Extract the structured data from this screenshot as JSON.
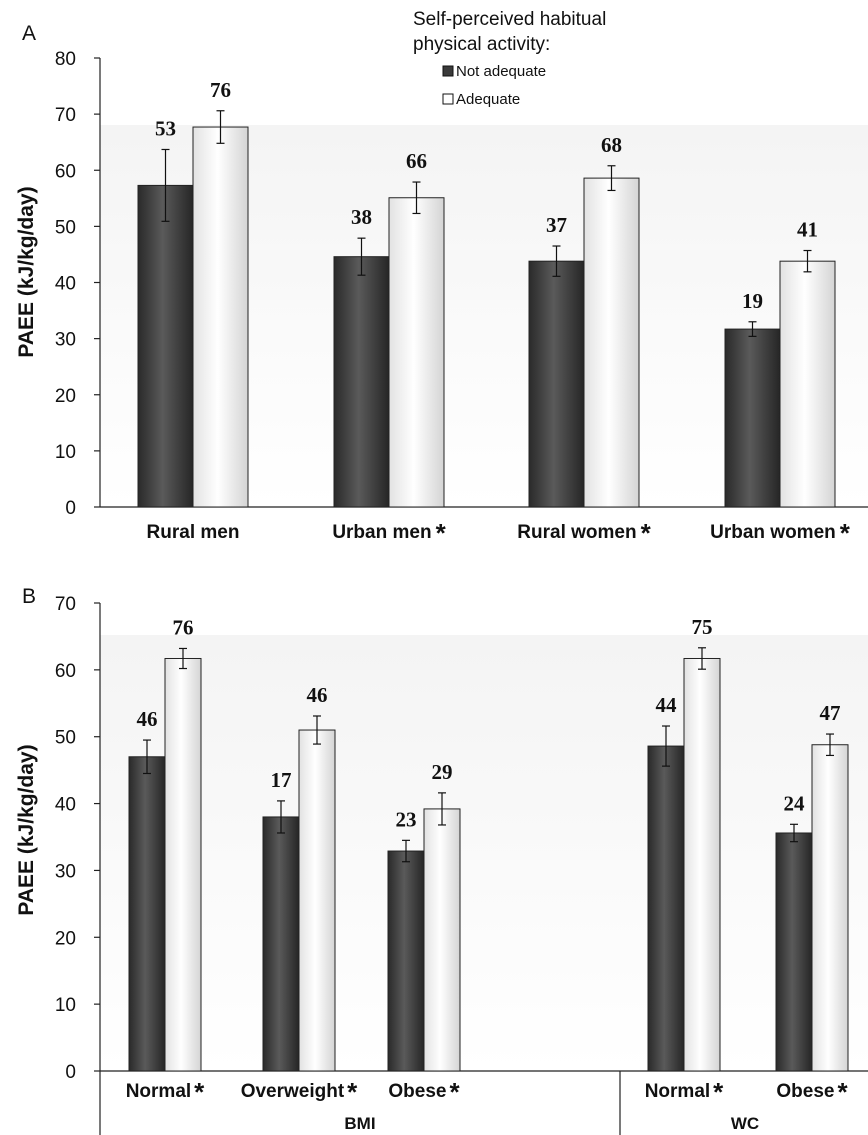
{
  "legend": {
    "title_line1": "Self-perceived habitual",
    "title_line2": "physical activity:",
    "entries": [
      "Not adequate",
      "Adequate"
    ]
  },
  "colors": {
    "not_adequate": "#3a3a3a",
    "adequate": "#f2f2f2"
  },
  "chart_data": [
    {
      "type": "bar",
      "panel_label": "A",
      "ylabel": "PAEE  (kJ/kg/day)",
      "ylim": [
        0,
        80
      ],
      "yticks": [
        "0",
        "10",
        "20",
        "30",
        "40",
        "50",
        "60",
        "70",
        "80"
      ],
      "categories": [
        "Rural men",
        "Urban men",
        "Rural women",
        "Urban women"
      ],
      "significant": [
        false,
        true,
        true,
        true
      ],
      "series": [
        {
          "name": "Not adequate",
          "values": [
            57.3,
            44.6,
            43.8,
            31.7
          ],
          "errors": [
            6.4,
            3.3,
            2.7,
            1.3
          ],
          "labels": [
            "53",
            "38",
            "37",
            "19"
          ]
        },
        {
          "name": "Adequate",
          "values": [
            67.7,
            55.1,
            58.6,
            43.8
          ],
          "errors": [
            2.9,
            2.8,
            2.2,
            1.9
          ],
          "labels": [
            "76",
            "66",
            "68",
            "41"
          ]
        }
      ]
    },
    {
      "type": "bar",
      "panel_label": "B",
      "ylabel": "PAEE  (kJ/kg/day)",
      "ylim": [
        0,
        70
      ],
      "yticks": [
        "0",
        "10",
        "20",
        "30",
        "40",
        "50",
        "60",
        "70"
      ],
      "categories": [
        "Normal",
        "Overweight",
        "Obese",
        "Normal",
        "Obese"
      ],
      "significant": [
        true,
        true,
        true,
        true,
        true
      ],
      "groups": [
        {
          "name": "BMI",
          "count": 3
        },
        {
          "name": "WC",
          "count": 2
        }
      ],
      "series": [
        {
          "name": "Not adequate",
          "values": [
            47.0,
            38.0,
            32.9,
            48.6,
            35.6
          ],
          "errors": [
            2.5,
            2.4,
            1.6,
            3.0,
            1.3
          ],
          "labels": [
            "46",
            "17",
            "23",
            "44",
            "24"
          ]
        },
        {
          "name": "Adequate",
          "values": [
            61.7,
            51.0,
            39.2,
            61.7,
            48.8
          ],
          "errors": [
            1.5,
            2.1,
            2.4,
            1.6,
            1.6
          ],
          "labels": [
            "76",
            "46",
            "29",
            "75",
            "47"
          ]
        }
      ]
    }
  ]
}
